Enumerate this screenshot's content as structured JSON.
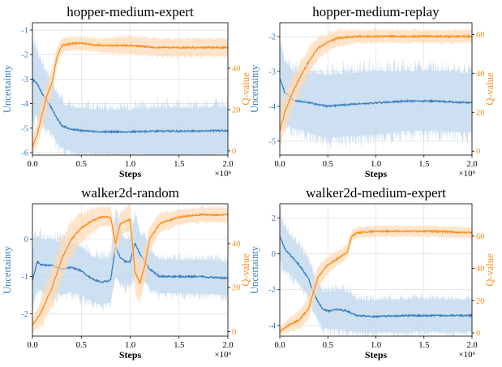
{
  "colors": {
    "uncertainty": "#3a7ebf",
    "uncertainty_band": "#bcd6ec",
    "qvalue": "#ff8c1a",
    "qvalue_band": "#ffd9b3"
  },
  "chart_data": [
    {
      "type": "line",
      "title": "hopper-medium-expert",
      "xlabel": "Steps",
      "x_multiplier": "×10⁶",
      "ylabel_left": "Uncertainty",
      "ylabel_right": "Q-value",
      "xlim": [
        0,
        2.0
      ],
      "ylim_left": [
        -6.1,
        -0.7
      ],
      "ylim_right": [
        -2,
        62
      ],
      "x_ticks": [
        "0.0",
        "0.5",
        "1.0",
        "1.5",
        "2.0"
      ],
      "y_left_ticks": [
        -6,
        -5,
        -4,
        -3,
        -2,
        -1
      ],
      "y_right_ticks": [
        0,
        20,
        40
      ],
      "grid": true,
      "series": [
        {
          "name": "Uncertainty",
          "axis": "left",
          "x": [
            0,
            0.05,
            0.1,
            0.15,
            0.2,
            0.25,
            0.3,
            0.4,
            0.5,
            0.7,
            1.0,
            1.3,
            1.6,
            2.0
          ],
          "y": [
            -3.0,
            -3.2,
            -3.6,
            -3.9,
            -4.2,
            -4.6,
            -4.9,
            -5.05,
            -5.1,
            -5.15,
            -5.15,
            -5.12,
            -5.12,
            -5.1
          ],
          "band": [
            1.5,
            1.3,
            1.2,
            1.1,
            1.0,
            1.0,
            0.9,
            0.9,
            0.9,
            0.9,
            0.9,
            0.95,
            0.95,
            0.95
          ]
        },
        {
          "name": "Q-value",
          "axis": "right",
          "x": [
            0,
            0.05,
            0.1,
            0.15,
            0.2,
            0.25,
            0.3,
            0.4,
            0.5,
            0.7,
            1.0,
            1.3,
            1.6,
            2.0
          ],
          "y": [
            2,
            8,
            18,
            27,
            33,
            45,
            51,
            52,
            52,
            51,
            51,
            50,
            50,
            50
          ],
          "band": [
            4,
            5,
            6,
            6,
            5,
            4,
            3,
            3,
            3,
            3,
            4,
            4,
            4,
            4
          ]
        }
      ]
    },
    {
      "type": "line",
      "title": "hopper-medium-replay",
      "xlabel": "Steps",
      "x_multiplier": "×10⁶",
      "ylabel_left": "Uncertainty",
      "ylabel_right": "Q-value",
      "xlim": [
        0,
        2.0
      ],
      "ylim_left": [
        -5.4,
        -1.6
      ],
      "ylim_right": [
        -2,
        66
      ],
      "x_ticks": [
        "0.0",
        "0.5",
        "1.0",
        "1.5",
        "2.0"
      ],
      "y_left_ticks": [
        -5,
        -4,
        -3,
        -2
      ],
      "y_right_ticks": [
        0,
        20,
        40,
        60
      ],
      "grid": true,
      "series": [
        {
          "name": "Uncertainty",
          "axis": "left",
          "x": [
            0,
            0.05,
            0.1,
            0.15,
            0.2,
            0.3,
            0.5,
            0.7,
            1.0,
            1.3,
            1.6,
            2.0
          ],
          "y": [
            -3.2,
            -3.6,
            -3.7,
            -3.85,
            -3.85,
            -3.9,
            -4.0,
            -3.95,
            -3.9,
            -3.85,
            -3.85,
            -3.9
          ],
          "band": [
            1.0,
            0.9,
            0.85,
            0.8,
            0.8,
            0.85,
            0.9,
            0.9,
            0.9,
            0.85,
            0.85,
            0.85
          ]
        },
        {
          "name": "Q-value",
          "axis": "right",
          "x": [
            0,
            0.05,
            0.1,
            0.15,
            0.2,
            0.3,
            0.4,
            0.5,
            0.6,
            0.8,
            1.0,
            1.3,
            1.6,
            2.0
          ],
          "y": [
            10,
            20,
            26,
            32,
            37,
            46,
            53,
            56,
            58,
            59,
            59,
            59,
            59,
            59
          ],
          "band": [
            8,
            8,
            8,
            7,
            7,
            6,
            5,
            4,
            4,
            3,
            3,
            3,
            3,
            3
          ]
        }
      ]
    },
    {
      "type": "line",
      "title": "walker2d-random",
      "xlabel": "Steps",
      "x_multiplier": "×10⁶",
      "ylabel_left": "Uncertainty",
      "ylabel_right": "Q-value",
      "xlim": [
        0,
        2.0
      ],
      "ylim_left": [
        -2.6,
        0.95
      ],
      "ylim_right": [
        -2,
        58
      ],
      "x_ticks": [
        "0.0",
        "0.5",
        "1.0",
        "1.5",
        "2.0"
      ],
      "y_left_ticks": [
        -2,
        -1,
        0
      ],
      "y_right_ticks": [
        0,
        20,
        40
      ],
      "grid": true,
      "series": [
        {
          "name": "Uncertainty",
          "axis": "left",
          "x": [
            0,
            0.05,
            0.1,
            0.2,
            0.3,
            0.4,
            0.5,
            0.6,
            0.7,
            0.8,
            0.85,
            0.9,
            0.95,
            1.0,
            1.05,
            1.1,
            1.2,
            1.3,
            1.5,
            1.7,
            2.0
          ],
          "y": [
            -1.1,
            -0.6,
            -0.7,
            -0.7,
            -0.8,
            -0.75,
            -0.85,
            -1.05,
            -1.15,
            -1.1,
            -0.2,
            -0.5,
            -0.6,
            -0.6,
            -0.1,
            -0.4,
            -0.8,
            -1.0,
            -1.0,
            -1.0,
            -1.05
          ],
          "band": [
            0.8,
            0.7,
            0.7,
            0.7,
            0.7,
            0.65,
            0.65,
            0.6,
            0.6,
            0.6,
            0.8,
            0.7,
            0.6,
            0.6,
            0.7,
            0.6,
            0.5,
            0.45,
            0.45,
            0.45,
            0.45
          ]
        },
        {
          "name": "Q-value",
          "axis": "right",
          "x": [
            0,
            0.05,
            0.1,
            0.2,
            0.3,
            0.4,
            0.5,
            0.6,
            0.7,
            0.8,
            0.85,
            0.9,
            0.95,
            1.0,
            1.05,
            1.1,
            1.15,
            1.2,
            1.3,
            1.5,
            1.7,
            2.0
          ],
          "y": [
            3,
            6,
            10,
            20,
            33,
            42,
            47,
            50,
            52,
            52,
            40,
            49,
            50,
            51,
            27,
            22,
            30,
            42,
            49,
            52,
            53,
            53
          ],
          "band": [
            3,
            4,
            6,
            8,
            8,
            7,
            6,
            5,
            4,
            4,
            6,
            5,
            5,
            5,
            8,
            8,
            7,
            5,
            4,
            3,
            3,
            3
          ]
        }
      ]
    },
    {
      "type": "line",
      "title": "walker2d-medium-expert",
      "xlabel": "Steps",
      "x_multiplier": "×10⁶",
      "ylabel_left": "Uncertainty",
      "ylabel_right": "Q-value",
      "xlim": [
        0,
        2.0
      ],
      "ylim_left": [
        -4.6,
        2.8
      ],
      "ylim_right": [
        -2,
        80
      ],
      "x_ticks": [
        "0.0",
        "0.5",
        "1.0",
        "1.5",
        "2.0"
      ],
      "y_left_ticks": [
        -4,
        -2,
        0,
        2
      ],
      "y_right_ticks": [
        0,
        20,
        40,
        60
      ],
      "grid": true,
      "series": [
        {
          "name": "Uncertainty",
          "axis": "left",
          "x": [
            0,
            0.05,
            0.1,
            0.2,
            0.3,
            0.35,
            0.4,
            0.45,
            0.5,
            0.6,
            0.7,
            0.8,
            1.0,
            1.3,
            1.6,
            2.0
          ],
          "y": [
            1.0,
            0.3,
            0.0,
            -0.6,
            -1.4,
            -2.2,
            -2.7,
            -3.1,
            -3.2,
            -3.1,
            -3.2,
            -3.45,
            -3.5,
            -3.45,
            -3.45,
            -3.45
          ],
          "band": [
            1.3,
            1.2,
            1.1,
            1.0,
            1.0,
            1.0,
            1.0,
            1.0,
            1.0,
            1.1,
            1.1,
            0.9,
            0.9,
            0.9,
            0.9,
            0.9
          ]
        },
        {
          "name": "Q-value",
          "axis": "right",
          "x": [
            0,
            0.05,
            0.1,
            0.2,
            0.3,
            0.35,
            0.4,
            0.5,
            0.6,
            0.7,
            0.75,
            0.8,
            1.0,
            1.3,
            1.6,
            2.0
          ],
          "y": [
            1,
            3,
            5,
            8,
            15,
            25,
            35,
            42,
            46,
            50,
            60,
            62,
            63,
            63,
            63,
            62
          ],
          "band": [
            2,
            3,
            4,
            5,
            6,
            6,
            6,
            5,
            4,
            4,
            3,
            3,
            3,
            3,
            3,
            3
          ]
        }
      ]
    }
  ]
}
